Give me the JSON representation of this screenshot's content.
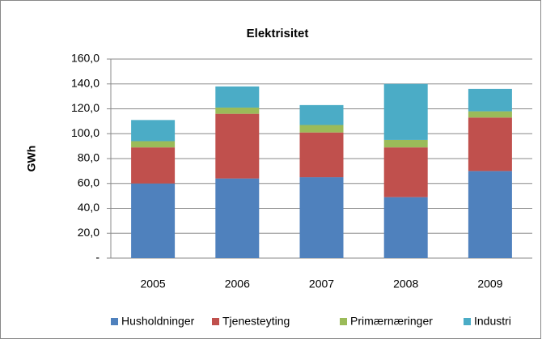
{
  "chart_data": {
    "type": "stacked_bar",
    "title": "Elektrisitet",
    "y_label": "GWh",
    "categories": [
      "2005",
      "2006",
      "2007",
      "2008",
      "2009"
    ],
    "series": [
      {
        "name": "Husholdninger",
        "color": "#4f81bd",
        "values": [
          60,
          64,
          65,
          49,
          70
        ]
      },
      {
        "name": "Tjenesteyting",
        "color": "#c0504d",
        "values": [
          29,
          52,
          36,
          40,
          43
        ]
      },
      {
        "name": "Primærnæringer",
        "color": "#9bbb59",
        "values": [
          5,
          5,
          6,
          6,
          5
        ]
      },
      {
        "name": "Industri",
        "color": "#4bacc6",
        "values": [
          17,
          17,
          16,
          45,
          18
        ]
      }
    ],
    "ylim": [
      0,
      160
    ],
    "yticks": [
      {
        "value": 0,
        "label": "-"
      },
      {
        "value": 20,
        "label": "20,0"
      },
      {
        "value": 40,
        "label": "40,0"
      },
      {
        "value": 60,
        "label": "60,0"
      },
      {
        "value": 80,
        "label": "80,0"
      },
      {
        "value": 100,
        "label": "100,0"
      },
      {
        "value": 120,
        "label": "120,0"
      },
      {
        "value": 140,
        "label": "140,0"
      },
      {
        "value": 160,
        "label": "160,0"
      }
    ],
    "grid": true,
    "legend": "bottom"
  }
}
